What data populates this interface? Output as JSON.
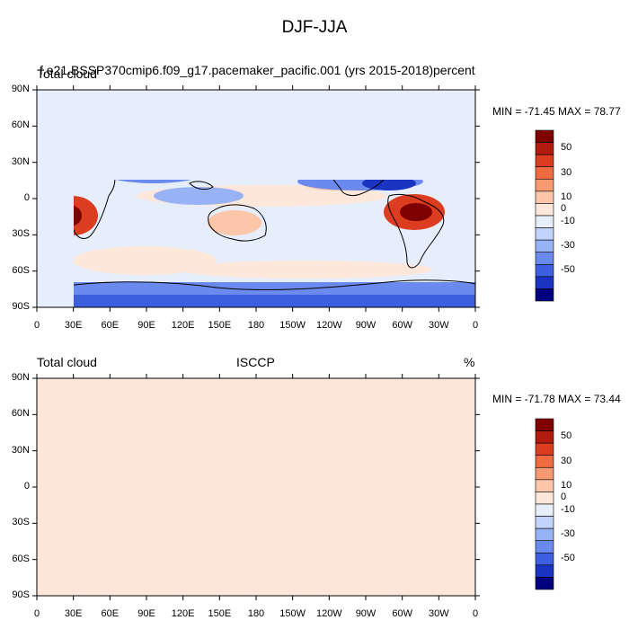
{
  "main_title": "DJF-JJA",
  "panels": [
    {
      "left_label": "Total cloud",
      "center_label": "f.e21.BSSP370cmip6.f09_g17.pacemaker_pacific.001 (yrs 2015-2018)",
      "right_label": "percent",
      "minmax": "MIN = -71.45 MAX = 78.77"
    },
    {
      "left_label": "Total cloud",
      "center_label": "ISCCP",
      "right_label": "%",
      "minmax": "MIN = -71.78 MAX = 73.44"
    }
  ],
  "lat_ticks": [
    "90N",
    "60N",
    "30N",
    "0",
    "30S",
    "60S",
    "90S"
  ],
  "lon_ticks": [
    "0",
    "30E",
    "60E",
    "90E",
    "120E",
    "150E",
    "180",
    "150W",
    "120W",
    "90W",
    "60W",
    "30W",
    "0"
  ],
  "colorbar": {
    "labels": [
      "50",
      "30",
      "10",
      "0",
      "-10",
      "-30",
      "-50"
    ],
    "colors": [
      "#7f0000",
      "#b21c0e",
      "#dc3c20",
      "#f06b40",
      "#f79a72",
      "#fbc6a9",
      "#fde6da",
      "#e6eefc",
      "#c2d4fb",
      "#97b3f6",
      "#6a8aef",
      "#3c5fe0",
      "#1a34c2",
      "#00007f"
    ]
  }
}
